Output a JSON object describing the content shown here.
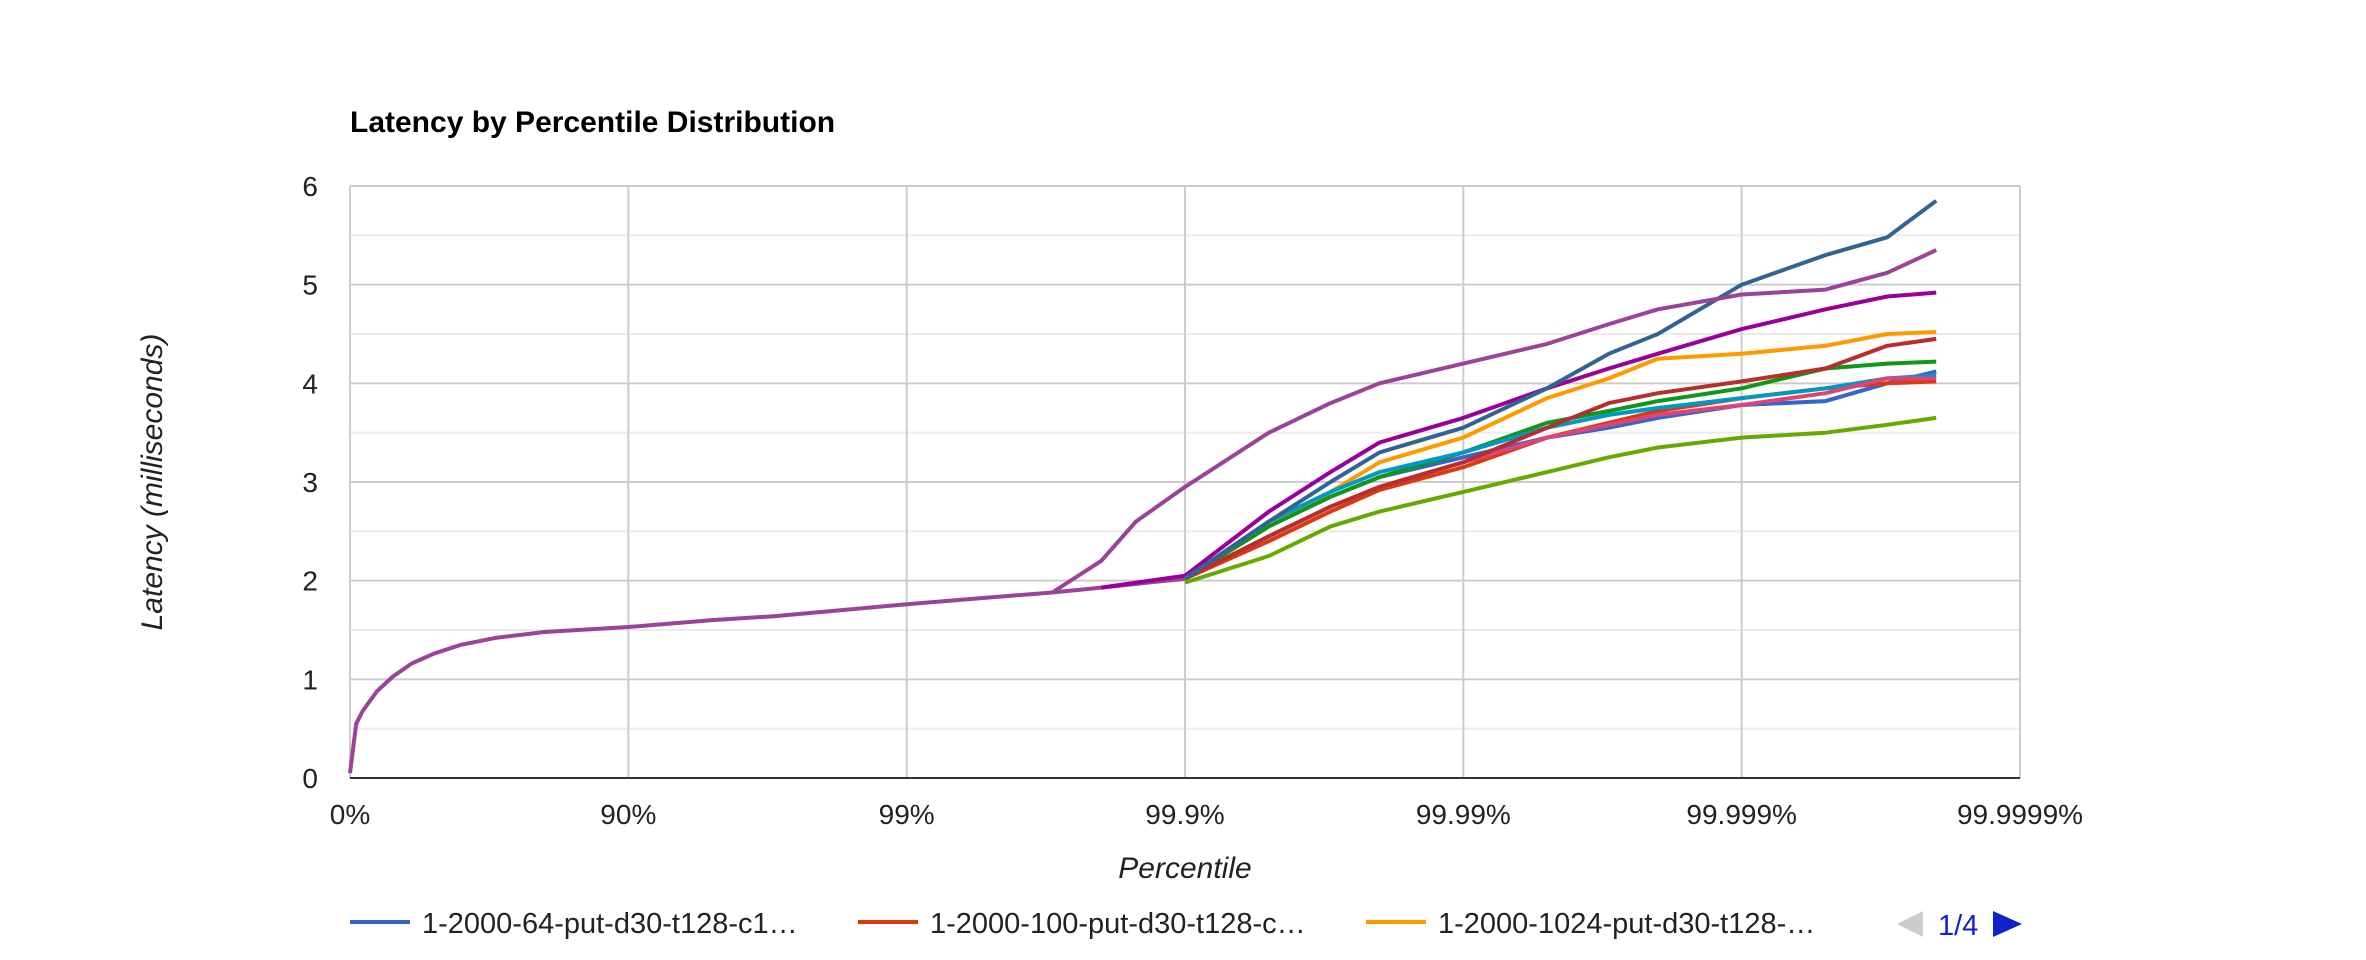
{
  "chart_data": {
    "type": "line",
    "title": "Latency by Percentile Distribution",
    "xlabel": "Percentile",
    "ylabel": "Latency (milliseconds)",
    "x_scale": "log-percentile",
    "x_ticks": [
      "0%",
      "90%",
      "99%",
      "99.9%",
      "99.99%",
      "99.999%",
      "99.9999%"
    ],
    "y_ticks": [
      "0",
      "1",
      "2",
      "3",
      "4",
      "5",
      "6"
    ],
    "ylim": [
      0,
      6
    ],
    "grid": true,
    "legend_position": "bottom",
    "legend_visible": [
      "1-2000-64-put-d30-t128-c1…",
      "1-2000-100-put-d30-t128-c…",
      "1-2000-1024-put-d30-t128-…"
    ],
    "legend_page": "1/4",
    "base_curve": {
      "x": [
        "0%",
        "5%",
        "10%",
        "20%",
        "30%",
        "40%",
        "50%",
        "60%",
        "70%",
        "80%",
        "90%",
        "95%",
        "97%",
        "99%",
        "99.5%",
        "99.7%",
        "99.8%",
        "99.9%"
      ],
      "y": [
        0.05,
        0.55,
        0.68,
        0.88,
        1.03,
        1.16,
        1.26,
        1.35,
        1.42,
        1.48,
        1.53,
        1.6,
        1.64,
        1.76,
        1.83,
        1.88,
        1.93,
        2.02
      ]
    },
    "series": [
      {
        "color": "#3366cc",
        "x": [
          "99.9%",
          "99.95%",
          "99.97%",
          "99.98%",
          "99.99%",
          "99.995%",
          "99.997%",
          "99.998%",
          "99.999%",
          "99.9995%",
          "99.9997%",
          "99.9998%"
        ],
        "y": [
          2.02,
          2.55,
          2.85,
          3.05,
          3.25,
          3.45,
          3.55,
          3.65,
          3.78,
          3.82,
          4.0,
          4.12
        ]
      },
      {
        "color": "#dc3912",
        "x": [
          "99.9%",
          "99.95%",
          "99.97%",
          "99.98%",
          "99.99%",
          "99.995%",
          "99.997%",
          "99.998%",
          "99.999%",
          "99.9995%",
          "99.9997%",
          "99.9998%"
        ],
        "y": [
          2.02,
          2.4,
          2.7,
          2.92,
          3.15,
          3.45,
          3.6,
          3.72,
          3.85,
          3.95,
          4.0,
          4.02
        ]
      },
      {
        "color": "#ff9900",
        "x": [
          "99.9%",
          "99.95%",
          "99.97%",
          "99.98%",
          "99.99%",
          "99.995%",
          "99.997%",
          "99.998%",
          "99.999%",
          "99.9995%",
          "99.9997%",
          "99.9998%"
        ],
        "y": [
          2.02,
          2.55,
          2.9,
          3.2,
          3.45,
          3.85,
          4.05,
          4.25,
          4.3,
          4.38,
          4.5,
          4.52
        ]
      },
      {
        "color": "#109618",
        "x": [
          "99.9%",
          "99.95%",
          "99.97%",
          "99.98%",
          "99.99%",
          "99.995%",
          "99.997%",
          "99.998%",
          "99.999%",
          "99.9995%",
          "99.9997%",
          "99.9998%"
        ],
        "y": [
          2.02,
          2.55,
          2.85,
          3.05,
          3.3,
          3.6,
          3.72,
          3.82,
          3.95,
          4.15,
          4.2,
          4.22
        ]
      },
      {
        "color": "#990099",
        "x": [
          "99.8%",
          "99.9%",
          "99.95%",
          "99.97%",
          "99.98%",
          "99.99%",
          "99.995%",
          "99.997%",
          "99.998%",
          "99.999%",
          "99.9995%",
          "99.9997%",
          "99.9998%"
        ],
        "y": [
          1.93,
          2.05,
          2.7,
          3.1,
          3.4,
          3.65,
          3.95,
          4.15,
          4.3,
          4.55,
          4.75,
          4.88,
          4.92
        ]
      },
      {
        "color": "#0099c6",
        "x": [
          "99.9%",
          "99.95%",
          "99.97%",
          "99.98%",
          "99.99%",
          "99.995%",
          "99.997%",
          "99.998%",
          "99.999%",
          "99.9995%",
          "99.9997%",
          "99.9998%"
        ],
        "y": [
          2.02,
          2.6,
          2.9,
          3.1,
          3.3,
          3.55,
          3.68,
          3.75,
          3.85,
          3.95,
          4.05,
          4.08
        ]
      },
      {
        "color": "#dd4477",
        "x": [
          "99.9%",
          "99.95%",
          "99.97%",
          "99.98%",
          "99.99%",
          "99.995%",
          "99.997%",
          "99.998%",
          "99.999%",
          "99.9995%",
          "99.9997%",
          "99.9998%"
        ],
        "y": [
          2.02,
          2.45,
          2.75,
          2.95,
          3.2,
          3.45,
          3.58,
          3.68,
          3.78,
          3.9,
          4.05,
          4.05
        ]
      },
      {
        "color": "#66aa00",
        "x": [
          "99.9%",
          "99.95%",
          "99.97%",
          "99.98%",
          "99.99%",
          "99.995%",
          "99.997%",
          "99.998%",
          "99.999%",
          "99.9995%",
          "99.9997%",
          "99.9998%"
        ],
        "y": [
          1.98,
          2.25,
          2.55,
          2.7,
          2.9,
          3.1,
          3.25,
          3.35,
          3.45,
          3.5,
          3.58,
          3.65
        ]
      },
      {
        "color": "#b82e2e",
        "x": [
          "99.9%",
          "99.95%",
          "99.97%",
          "99.98%",
          "99.99%",
          "99.995%",
          "99.997%",
          "99.998%",
          "99.999%",
          "99.9995%",
          "99.9997%",
          "99.9998%"
        ],
        "y": [
          2.02,
          2.45,
          2.75,
          2.95,
          3.2,
          3.55,
          3.8,
          3.9,
          4.02,
          4.15,
          4.38,
          4.45
        ]
      },
      {
        "color": "#316395",
        "x": [
          "99.9%",
          "99.95%",
          "99.97%",
          "99.98%",
          "99.99%",
          "99.995%",
          "99.997%",
          "99.998%",
          "99.999%",
          "99.9995%",
          "99.9997%",
          "99.9998%"
        ],
        "y": [
          2.02,
          2.6,
          3.0,
          3.3,
          3.55,
          3.95,
          4.3,
          4.5,
          5.0,
          5.3,
          5.48,
          5.85
        ]
      },
      {
        "color": "#994499",
        "x": [
          "99.7%",
          "99.8%",
          "99.85%",
          "99.9%",
          "99.95%",
          "99.97%",
          "99.98%",
          "99.99%",
          "99.995%",
          "99.997%",
          "99.998%",
          "99.999%",
          "99.9995%",
          "99.9997%",
          "99.9998%"
        ],
        "y": [
          1.88,
          2.2,
          2.6,
          2.95,
          3.5,
          3.8,
          4.0,
          4.2,
          4.4,
          4.6,
          4.75,
          4.9,
          4.95,
          5.12,
          5.35
        ]
      }
    ]
  }
}
